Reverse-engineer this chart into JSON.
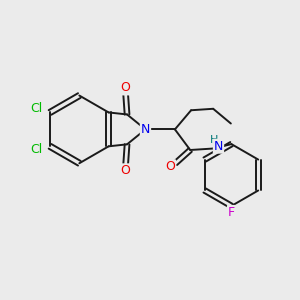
{
  "background_color": "#ebebeb",
  "bond_color": "#1a1a1a",
  "bond_width": 1.4,
  "atom_colors": {
    "C": "#1a1a1a",
    "N": "#0000ee",
    "O": "#ee0000",
    "Cl": "#00bb00",
    "F": "#cc00cc",
    "H": "#007777"
  },
  "font_size": 9
}
